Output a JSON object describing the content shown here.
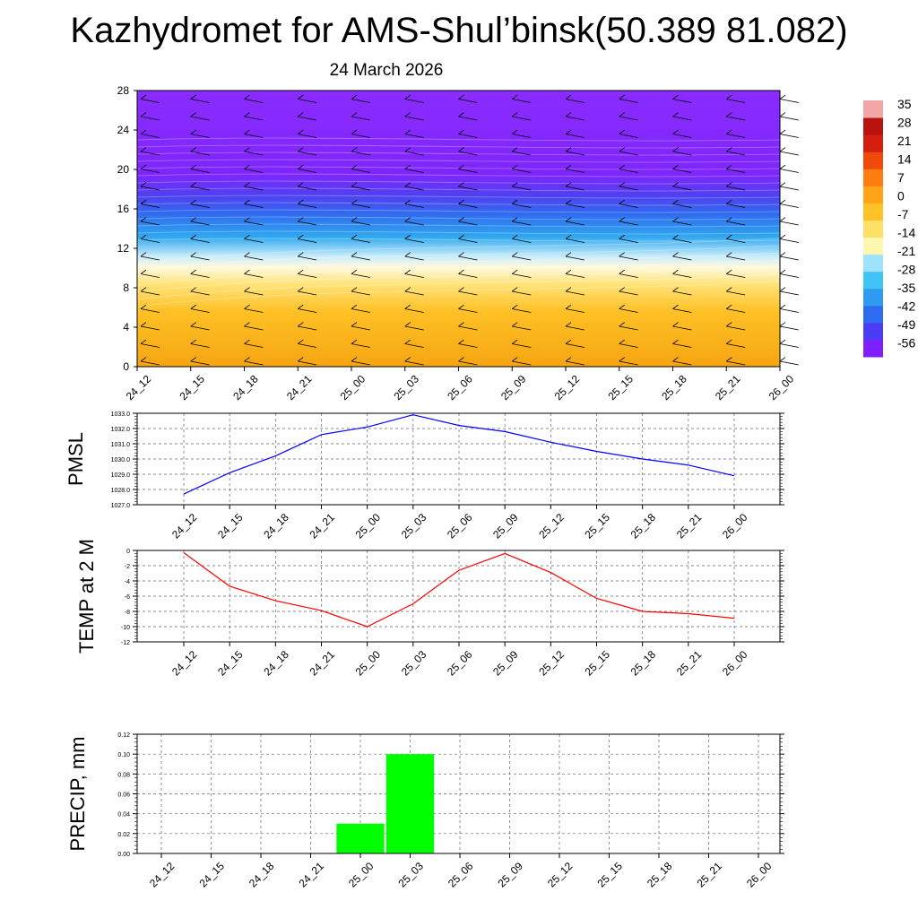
{
  "title": "Kazhydromet for AMS-Shul’binsk(50.389 81.082)",
  "subtitle": "24 March 2026",
  "time_labels": [
    "24_12",
    "24_15",
    "24_18",
    "24_21",
    "25_00",
    "25_03",
    "25_06",
    "25_09",
    "25_12",
    "25_15",
    "25_18",
    "25_21",
    "26_00"
  ],
  "colorbar": {
    "labels": [
      "35",
      "28",
      "21",
      "14",
      "7",
      "0",
      "-7",
      "-14",
      "-21",
      "-28",
      "-35",
      "-42",
      "-49",
      "-56"
    ],
    "colors": [
      "#7f1fff",
      "#4a3df5",
      "#2f6bf2",
      "#2f9bf0",
      "#3fc4f5",
      "#9fe2fb",
      "#fff7b0",
      "#ffe066",
      "#ffc227",
      "#ffa319",
      "#ff7d10",
      "#f04a0a",
      "#d41f0f",
      "#b8140f",
      "#f3a6a6"
    ]
  },
  "chart_data": [
    {
      "type": "heatmap",
      "name": "temperature-wind-cross-section",
      "y_ticks": [
        0,
        4,
        8,
        12,
        16,
        20,
        24,
        28
      ],
      "ylim": [
        0,
        28
      ],
      "categories": [
        "24_12",
        "24_15",
        "24_18",
        "24_21",
        "25_00",
        "25_03",
        "25_06",
        "25_09",
        "25_12",
        "25_15",
        "25_18",
        "25_21",
        "26_00"
      ]
    },
    {
      "type": "line",
      "name": "pmsl",
      "ylabel": "PMSL",
      "color": "#0000ff",
      "ylim": [
        1027.0,
        1033.0
      ],
      "y_ticks": [
        "1027.0",
        "1028.0",
        "1029.0",
        "1030.0",
        "1031.0",
        "1032.0",
        "1033.0"
      ],
      "categories": [
        "24_12",
        "24_15",
        "24_18",
        "24_21",
        "25_00",
        "25_03",
        "25_06",
        "25_09",
        "25_12",
        "25_15",
        "25_18",
        "25_21",
        "26_00"
      ],
      "values": [
        1027.7,
        1029.1,
        1030.2,
        1031.6,
        1032.1,
        1032.9,
        1032.2,
        1031.8,
        1031.1,
        1030.5,
        1030.0,
        1029.6,
        1028.9
      ]
    },
    {
      "type": "line",
      "name": "temp2m",
      "ylabel": "TEMP at 2 M",
      "color": "#ff0000",
      "ylim": [
        -12,
        0
      ],
      "y_ticks": [
        "-12",
        "-10",
        "-8",
        "-6",
        "-4",
        "-2",
        "0"
      ],
      "categories": [
        "24_12",
        "24_15",
        "24_18",
        "24_21",
        "25_00",
        "25_03",
        "25_06",
        "25_09",
        "25_12",
        "25_15",
        "25_18",
        "25_21",
        "26_00"
      ],
      "values": [
        -0.3,
        -4.7,
        -6.6,
        -7.9,
        -10.0,
        -7.0,
        -2.6,
        -0.4,
        -2.9,
        -6.3,
        -8.0,
        -8.3,
        -8.9
      ]
    },
    {
      "type": "bar",
      "name": "precip",
      "ylabel": "PRECIP, mm",
      "color": "#00ff00",
      "ylim": [
        0,
        0.12
      ],
      "y_ticks": [
        "0.00",
        "0.02",
        "0.04",
        "0.06",
        "0.08",
        "0.10",
        "0.12"
      ],
      "categories": [
        "24_12",
        "24_15",
        "24_18",
        "24_21",
        "25_00",
        "25_03",
        "25_06",
        "25_09",
        "25_12",
        "25_15",
        "25_18",
        "25_21",
        "26_00"
      ],
      "values": [
        0,
        0,
        0,
        0,
        0.03,
        0.1,
        0,
        0,
        0,
        0,
        0,
        0,
        0
      ]
    }
  ]
}
